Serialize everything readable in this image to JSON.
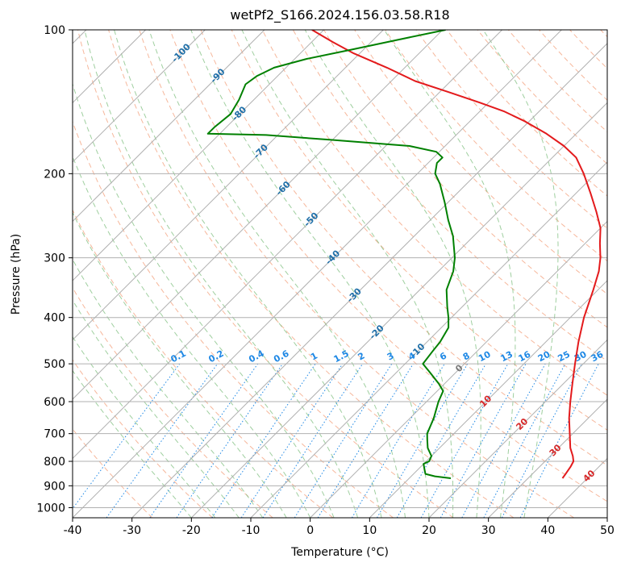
{
  "chart_data": {
    "type": "line",
    "title": "wetPf2_S166.2024.156.03.58.R18",
    "xlabel": "Temperature (°C)",
    "ylabel": "Pressure (hPa)",
    "xlim": [
      -40,
      50
    ],
    "ylim": [
      1050,
      100
    ],
    "y_scale": "log",
    "grid": true,
    "x_ticks": [
      -40,
      -30,
      -20,
      -10,
      0,
      10,
      20,
      30,
      40,
      50
    ],
    "y_ticks": [
      100,
      200,
      300,
      400,
      500,
      600,
      700,
      800,
      900,
      1000
    ],
    "series": [
      {
        "role": "temperature",
        "color": "#e31a1c",
        "points": [
          [
            868,
            35.8
          ],
          [
            850,
            35.6
          ],
          [
            820,
            35.2
          ],
          [
            800,
            34.8
          ],
          [
            780,
            33.8
          ],
          [
            750,
            32.0
          ],
          [
            700,
            29.5
          ],
          [
            650,
            26.8
          ],
          [
            600,
            24.2
          ],
          [
            550,
            21.5
          ],
          [
            500,
            18.6
          ],
          [
            450,
            15.5
          ],
          [
            400,
            12.3
          ],
          [
            350,
            9.2
          ],
          [
            320,
            7.0
          ],
          [
            300,
            5.0
          ],
          [
            280,
            2.5
          ],
          [
            260,
            0.0
          ],
          [
            240,
            -3.5
          ],
          [
            220,
            -7.5
          ],
          [
            200,
            -12.0
          ],
          [
            185,
            -16.0
          ],
          [
            175,
            -20.0
          ],
          [
            165,
            -25.0
          ],
          [
            155,
            -31.0
          ],
          [
            148,
            -36.0
          ],
          [
            142,
            -41.5
          ],
          [
            135,
            -48.5
          ],
          [
            128,
            -56.0
          ],
          [
            120,
            -63.0
          ],
          [
            112,
            -71.0
          ],
          [
            106,
            -76.5
          ],
          [
            100,
            -82.0
          ]
        ]
      },
      {
        "role": "dewpoint",
        "color": "#008000",
        "points": [
          [
            868,
            17.0
          ],
          [
            860,
            14.0
          ],
          [
            850,
            12.0
          ],
          [
            830,
            11.0
          ],
          [
            810,
            10.0
          ],
          [
            800,
            10.5
          ],
          [
            780,
            10.0
          ],
          [
            750,
            8.0
          ],
          [
            720,
            6.5
          ],
          [
            700,
            5.5
          ],
          [
            650,
            4.0
          ],
          [
            600,
            2.0
          ],
          [
            570,
            1.0
          ],
          [
            550,
            -1.0
          ],
          [
            520,
            -4.5
          ],
          [
            500,
            -7.0
          ],
          [
            470,
            -7.5
          ],
          [
            450,
            -7.8
          ],
          [
            420,
            -8.8
          ],
          [
            400,
            -10.5
          ],
          [
            380,
            -12.5
          ],
          [
            350,
            -15.5
          ],
          [
            320,
            -17.5
          ],
          [
            300,
            -19.5
          ],
          [
            270,
            -23.5
          ],
          [
            250,
            -27.0
          ],
          [
            230,
            -30.5
          ],
          [
            210,
            -34.5
          ],
          [
            200,
            -37.0
          ],
          [
            190,
            -38.5
          ],
          [
            185,
            -38.5
          ],
          [
            180,
            -40.5
          ],
          [
            175,
            -46.0
          ],
          [
            170,
            -60.0
          ],
          [
            166,
            -72.0
          ],
          [
            165,
            -82.0
          ],
          [
            160,
            -82.0
          ],
          [
            150,
            -81.5
          ],
          [
            140,
            -82.5
          ],
          [
            130,
            -84.0
          ],
          [
            125,
            -83.5
          ],
          [
            120,
            -82.0
          ],
          [
            115,
            -78.0
          ],
          [
            110,
            -72.0
          ],
          [
            105,
            -66.0
          ],
          [
            100,
            -59.5
          ]
        ]
      }
    ],
    "isotherm_labels": [
      "-100",
      "-90",
      "-80",
      "-70",
      "-60",
      "-50",
      "-40",
      "-30",
      "-20",
      "-10",
      "0",
      "10",
      "20",
      "30",
      "40"
    ],
    "mixing_ratio_labels": [
      "0.1",
      "0.2",
      "0.4",
      "0.6",
      "1",
      "1.5",
      "2",
      "3",
      "4",
      "6",
      "8",
      "10",
      "13",
      "16",
      "20",
      "25",
      "30",
      "36"
    ],
    "colors": {
      "isotherm_label_cold": "#1f6fa8",
      "isotherm_label_warm": "#d62728",
      "isotherm_label_zero": "#777777",
      "dry_adiabat": "#f4a582",
      "moist_adiabat": "#7fbf7f",
      "mixing_ratio": "#1e88e5",
      "grid": "#b0b0b0"
    }
  }
}
